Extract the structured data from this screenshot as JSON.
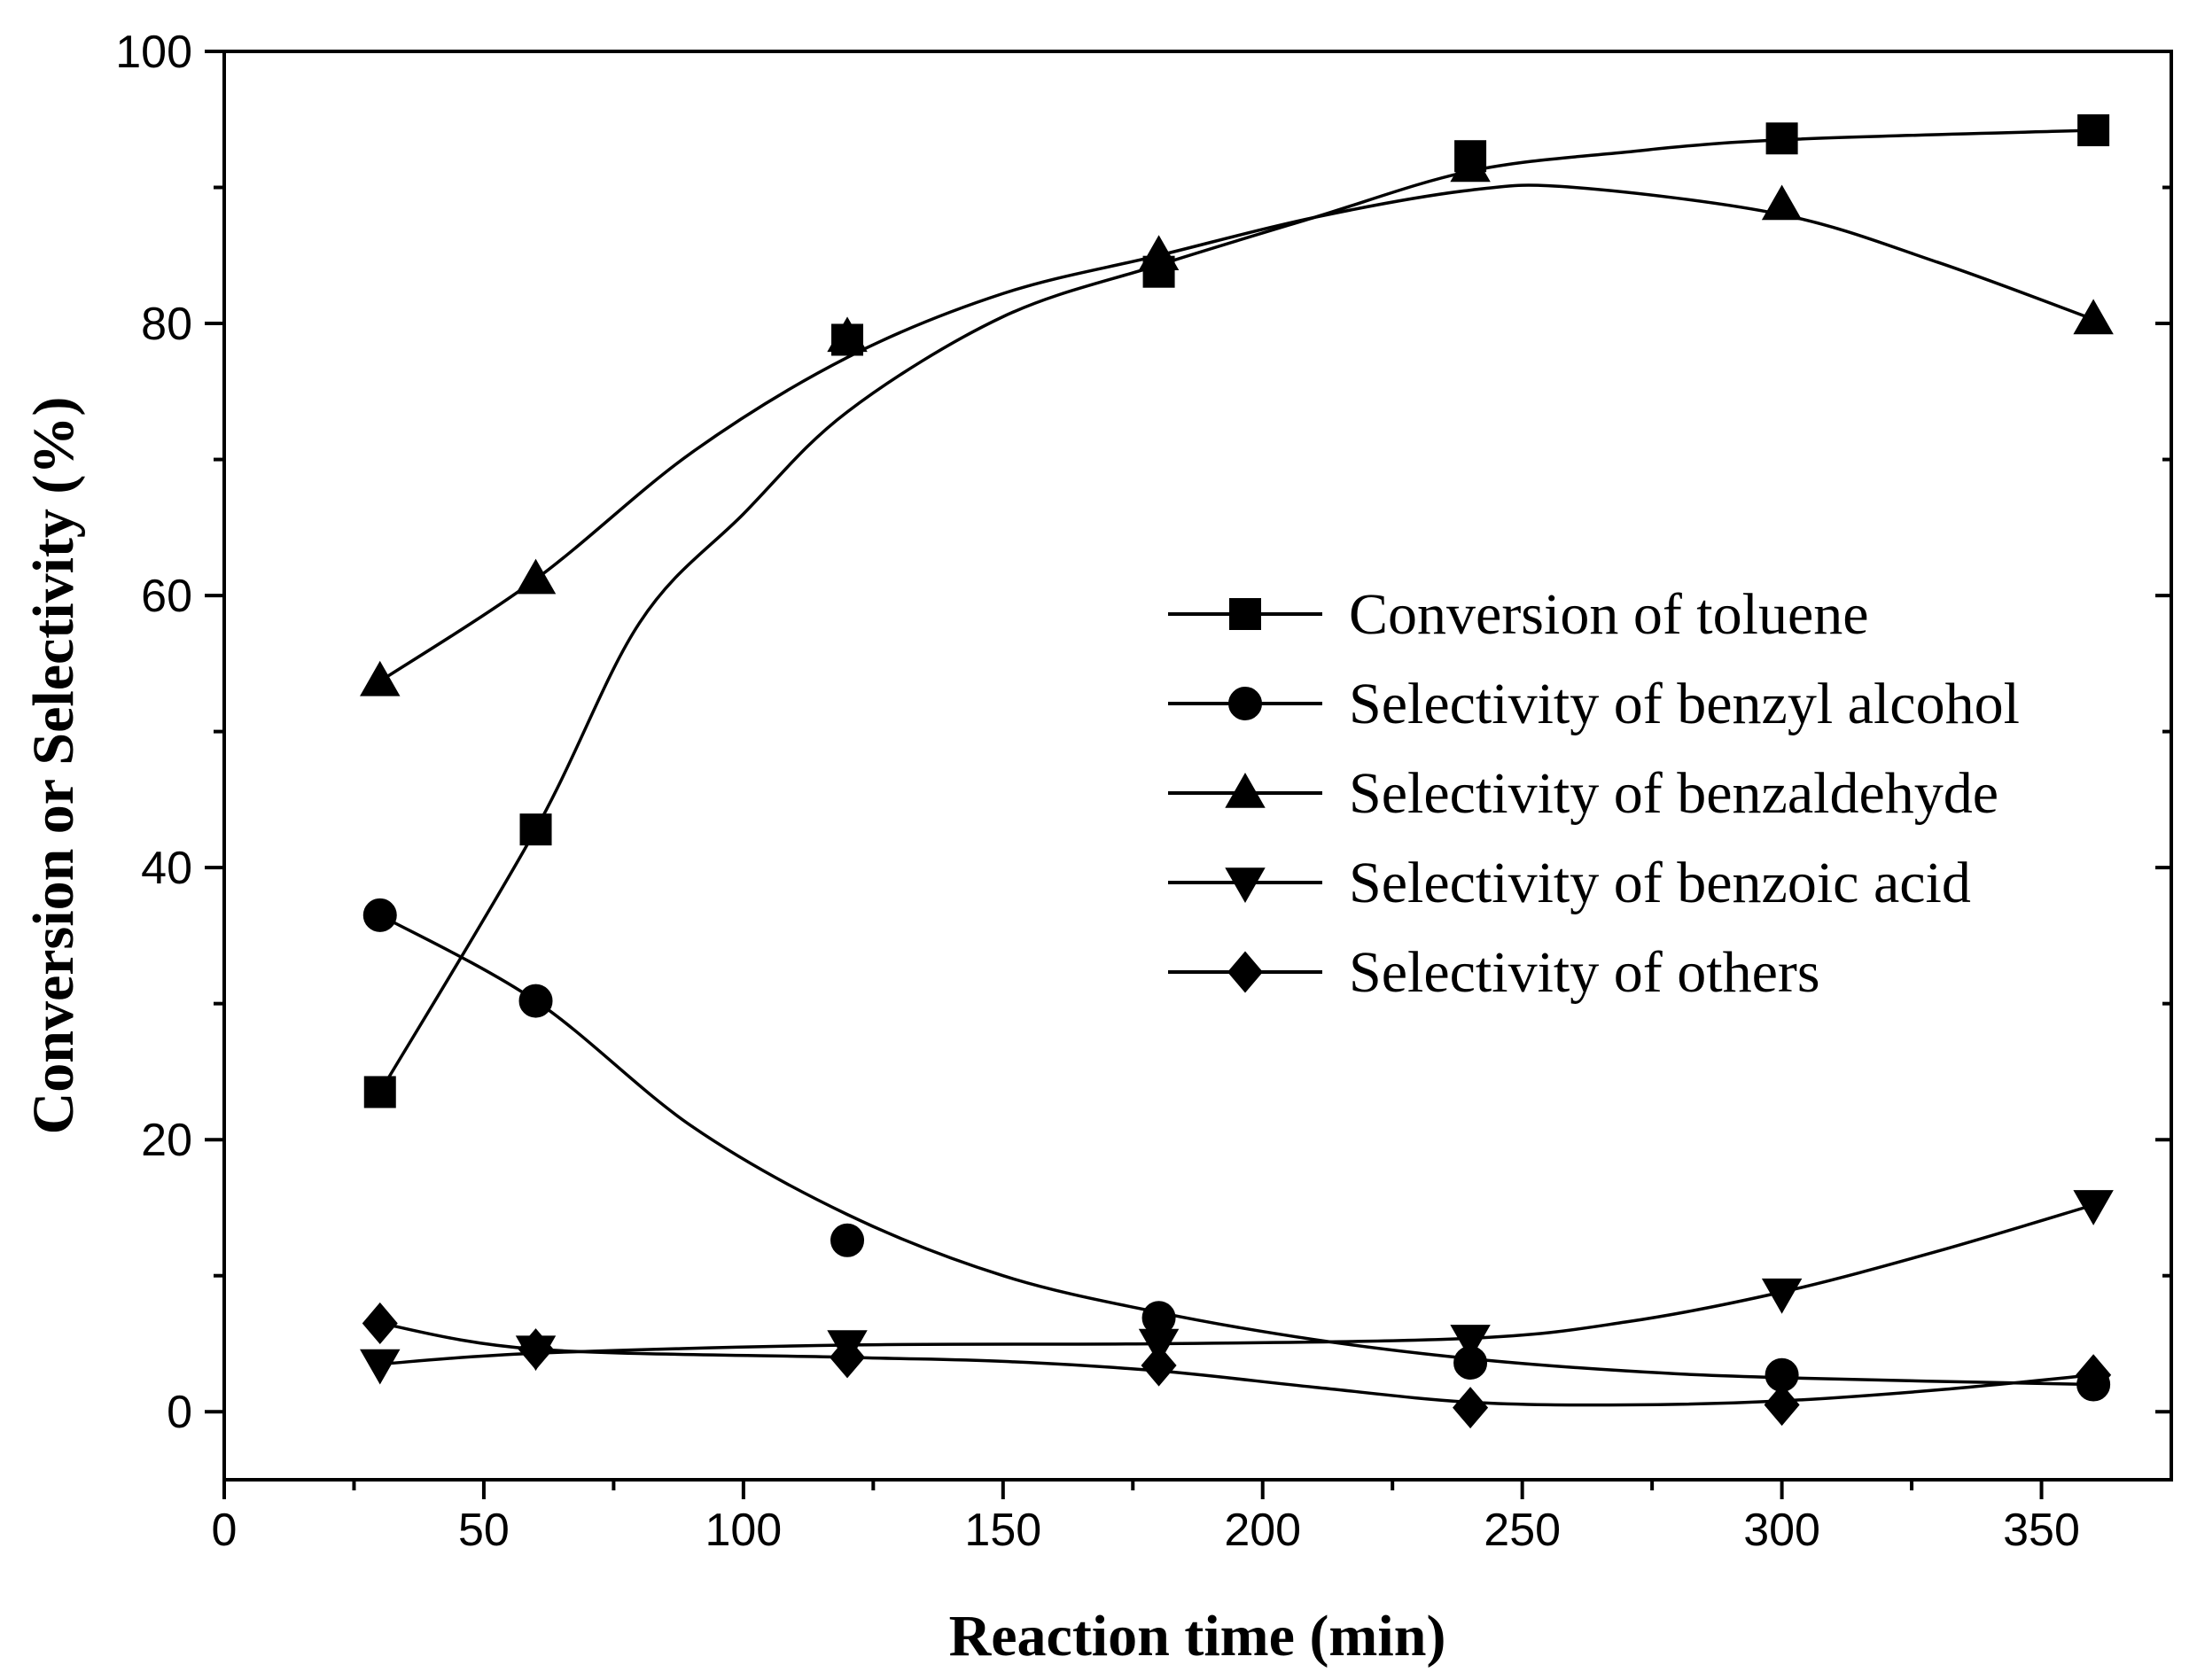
{
  "chart_data": {
    "type": "line",
    "title": "",
    "xlabel": "Reaction time (min)",
    "ylabel": "Conversion or Selectivity (%)",
    "xlim": [
      0,
      375
    ],
    "ylim": [
      -5,
      100
    ],
    "x_ticks": [
      0,
      50,
      100,
      150,
      200,
      250,
      300,
      350
    ],
    "x_tick_labels": [
      "0",
      "50",
      "100",
      "150",
      "200",
      "250",
      "300",
      "350"
    ],
    "y_ticks": [
      0,
      20,
      40,
      60,
      80,
      100
    ],
    "y_tick_labels": [
      "0",
      "20",
      "40",
      "60",
      "80",
      "100"
    ],
    "grid": false,
    "legend_position": "center-right",
    "x": [
      30,
      60,
      120,
      180,
      240,
      300,
      360
    ],
    "series": [
      {
        "name": "Conversion of toluene",
        "marker": "square",
        "values": [
          23.5,
          42.8,
          78.8,
          83.8,
          92.3,
          93.6,
          94.2
        ],
        "curve": [
          [
            30,
            23.5
          ],
          [
            60,
            42.8
          ],
          [
            80,
            58
          ],
          [
            100,
            66
          ],
          [
            120,
            73.5
          ],
          [
            150,
            80.5
          ],
          [
            180,
            84.3
          ],
          [
            210,
            87.8
          ],
          [
            240,
            91.2
          ],
          [
            270,
            92.6
          ],
          [
            300,
            93.5
          ],
          [
            360,
            94.2
          ]
        ]
      },
      {
        "name": "Selectivity of benzyl alcohol",
        "marker": "circle",
        "values": [
          36.5,
          30.2,
          12.6,
          6.9,
          3.6,
          2.7,
          2.0
        ],
        "curve": [
          [
            30,
            36.5
          ],
          [
            60,
            30.2
          ],
          [
            90,
            21
          ],
          [
            120,
            14.5
          ],
          [
            150,
            10
          ],
          [
            180,
            7.3
          ],
          [
            210,
            5.3
          ],
          [
            240,
            3.9
          ],
          [
            270,
            3.0
          ],
          [
            300,
            2.5
          ],
          [
            360,
            2.0
          ]
        ]
      },
      {
        "name": "Selectivity of benzaldehyde",
        "marker": "triangle-up",
        "values": [
          53.7,
          61.2,
          79.0,
          85.0,
          91.5,
          88.7,
          80.3
        ],
        "curve": [
          [
            30,
            53.7
          ],
          [
            60,
            61.2
          ],
          [
            90,
            70.5
          ],
          [
            120,
            77.5
          ],
          [
            150,
            82.2
          ],
          [
            180,
            85.0
          ],
          [
            210,
            87.8
          ],
          [
            240,
            89.8
          ],
          [
            260,
            90.0
          ],
          [
            300,
            88.0
          ],
          [
            330,
            84.5
          ],
          [
            360,
            80.3
          ]
        ]
      },
      {
        "name": "Selectivity of benzoic acid",
        "marker": "triangle-down",
        "values": [
          3.5,
          4.5,
          4.9,
          5.0,
          5.3,
          8.7,
          15.2
        ],
        "curve": [
          [
            30,
            3.5
          ],
          [
            60,
            4.3
          ],
          [
            120,
            4.9
          ],
          [
            180,
            5.0
          ],
          [
            240,
            5.4
          ],
          [
            270,
            6.6
          ],
          [
            300,
            8.8
          ],
          [
            330,
            11.8
          ],
          [
            360,
            15.2
          ]
        ]
      },
      {
        "name": "Selectivity of others",
        "marker": "diamond",
        "values": [
          6.5,
          4.6,
          4.0,
          3.4,
          0.3,
          0.5,
          2.7
        ],
        "curve": [
          [
            30,
            6.5
          ],
          [
            60,
            4.6
          ],
          [
            120,
            4.0
          ],
          [
            150,
            3.7
          ],
          [
            180,
            3.0
          ],
          [
            210,
            1.8
          ],
          [
            240,
            0.7
          ],
          [
            270,
            0.5
          ],
          [
            300,
            0.8
          ],
          [
            330,
            1.6
          ],
          [
            360,
            2.7
          ]
        ]
      }
    ]
  }
}
